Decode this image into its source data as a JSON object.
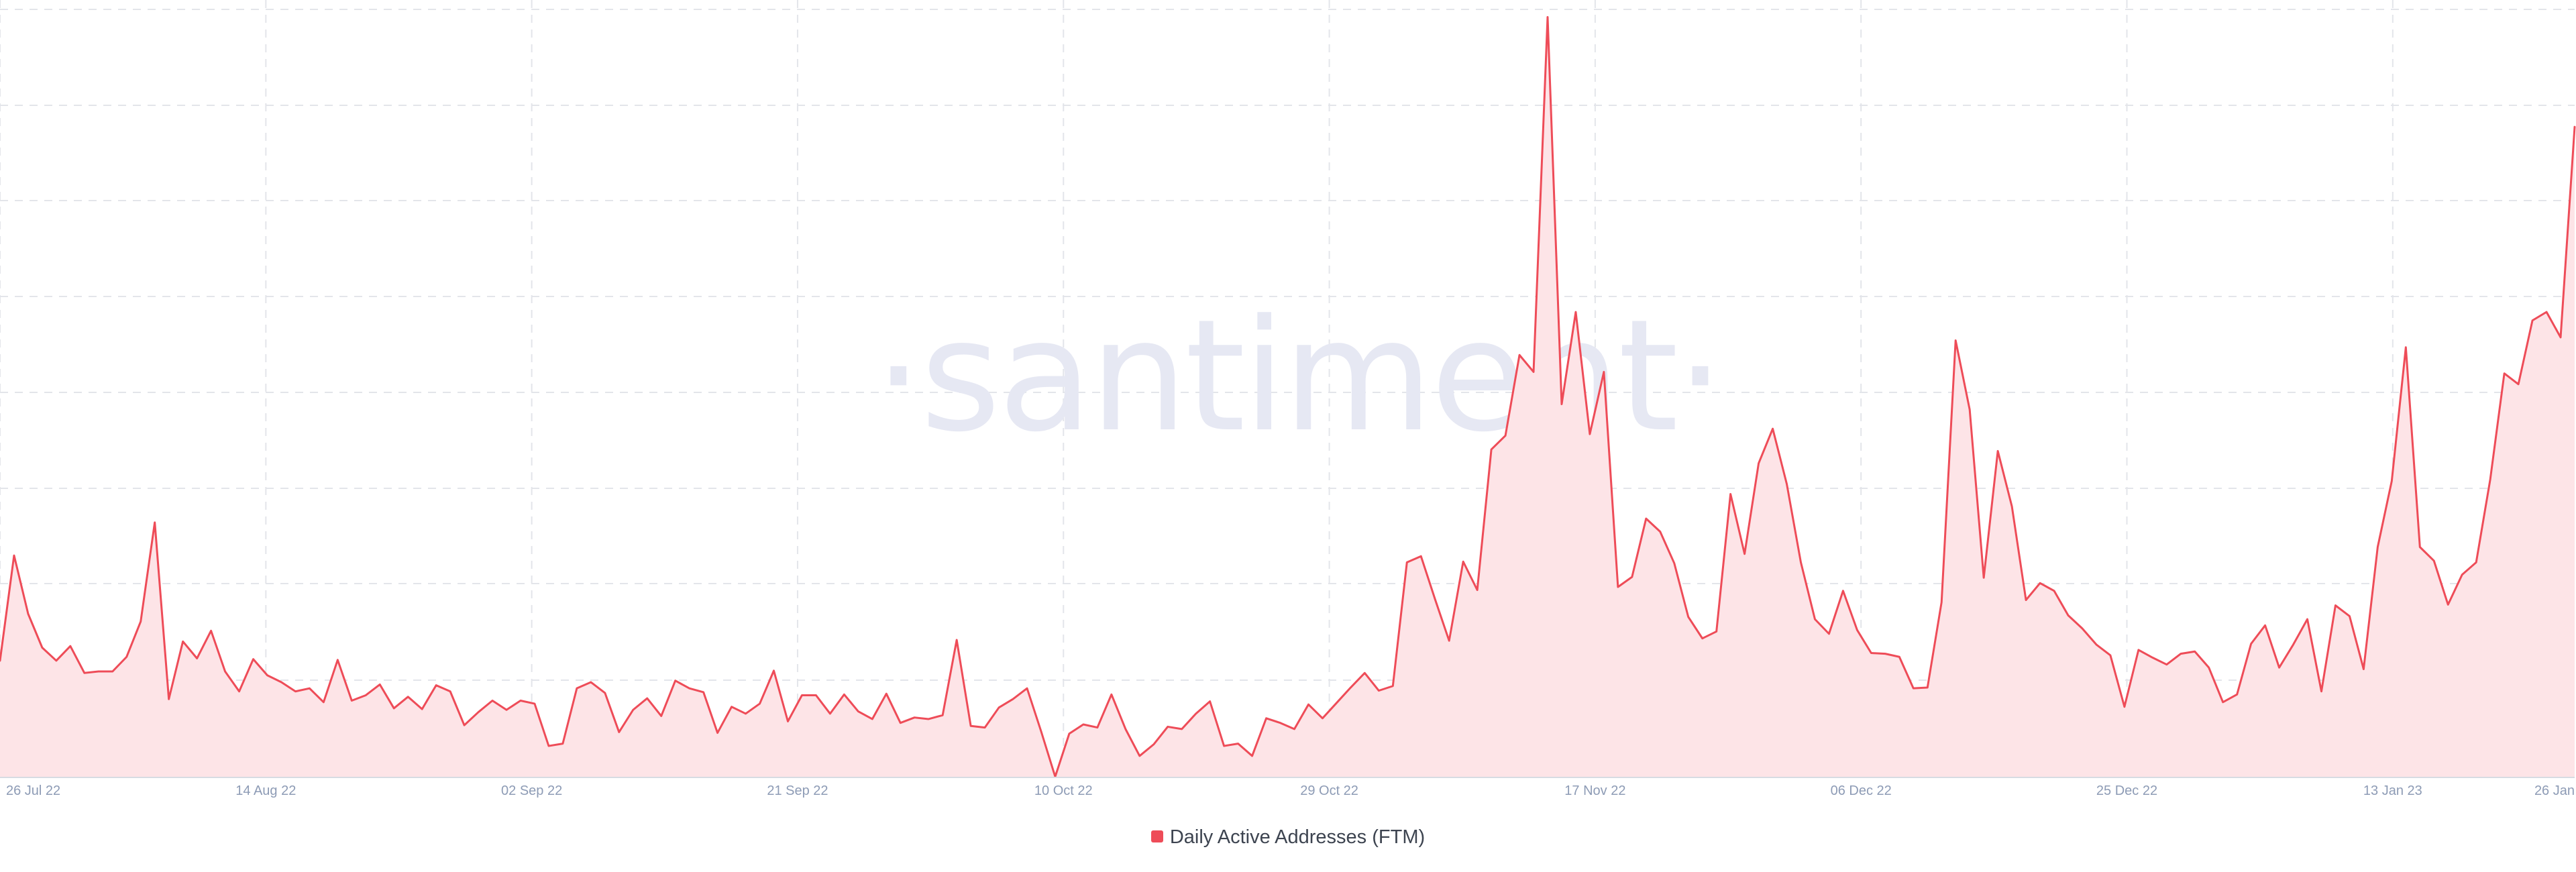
{
  "watermark": "·santiment·",
  "colors": {
    "line": "#ee4c58",
    "area": "#fde4e7",
    "grid": "#e3e5ea",
    "tick": "#8d9bb5",
    "watermark": "#e6e8f3"
  },
  "chart_data": {
    "type": "area",
    "title": "",
    "xlabel": "",
    "ylabel": "",
    "grid": true,
    "legend_position": "bottom-center",
    "x_range": [
      "2022-07-26",
      "2023-01-26"
    ],
    "y_range": [
      0,
      100
    ],
    "x_ticks": [
      {
        "date": "2022-07-26",
        "label": "26 Jul 22"
      },
      {
        "date": "2022-08-14",
        "label": "14 Aug 22"
      },
      {
        "date": "2022-09-02",
        "label": "02 Sep 22"
      },
      {
        "date": "2022-09-21",
        "label": "21 Sep 22"
      },
      {
        "date": "2022-10-10",
        "label": "10 Oct 22"
      },
      {
        "date": "2022-10-29",
        "label": "29 Oct 22"
      },
      {
        "date": "2022-11-17",
        "label": "17 Nov 22"
      },
      {
        "date": "2022-12-06",
        "label": "06 Dec 22"
      },
      {
        "date": "2022-12-25",
        "label": "25 Dec 22"
      },
      {
        "date": "2023-01-13",
        "label": "13 Jan 23"
      },
      {
        "date": "2023-01-26",
        "label": "26 Jan"
      }
    ],
    "series": [
      {
        "name": "Daily Active Addresses (FTM)",
        "color": "#ee4c58",
        "values": [
          15.2,
          28.9,
          21.3,
          16.9,
          15.2,
          17.1,
          13.6,
          13.8,
          13.8,
          15.7,
          20.3,
          33.2,
          10.2,
          17.7,
          15.5,
          19.1,
          13.8,
          11.2,
          15.4,
          13.3,
          12.4,
          11.2,
          11.6,
          9.8,
          15.3,
          10.0,
          10.7,
          12.1,
          9.0,
          10.5,
          8.9,
          12.0,
          11.2,
          6.8,
          8.5,
          10.0,
          8.8,
          10.0,
          9.6,
          4.1,
          4.4,
          11.6,
          12.4,
          11.0,
          5.9,
          8.8,
          10.3,
          8.0,
          12.6,
          11.6,
          11.1,
          5.8,
          9.2,
          8.3,
          9.6,
          13.9,
          7.3,
          10.7,
          10.7,
          8.3,
          10.8,
          8.6,
          7.6,
          10.9,
          7.1,
          7.8,
          7.6,
          8.1,
          17.9,
          6.7,
          6.5,
          9.1,
          10.2,
          11.6,
          6.0,
          0.1,
          5.7,
          6.9,
          6.5,
          10.8,
          6.3,
          2.8,
          4.3,
          6.6,
          6.3,
          8.3,
          9.9,
          4.1,
          4.4,
          2.8,
          7.7,
          7.1,
          6.3,
          9.5,
          7.7,
          9.7,
          11.7,
          13.6,
          11.3,
          11.9,
          28.0,
          28.8,
          23.2,
          17.8,
          28.1,
          24.4,
          42.7,
          44.5,
          55.0,
          52.8,
          99.0,
          48.6,
          60.6,
          44.7,
          52.8,
          24.8,
          26.1,
          33.7,
          32.0,
          27.9,
          20.9,
          18.1,
          19.0,
          36.9,
          29.1,
          40.9,
          45.4,
          38.2,
          28.0,
          20.6,
          18.7,
          24.3,
          19.2,
          16.2,
          16.1,
          15.7,
          11.6,
          11.7,
          22.8,
          56.9,
          47.9,
          26.0,
          42.5,
          35.3,
          23.1,
          25.3,
          24.3,
          21.1,
          19.4,
          17.3,
          15.9,
          9.2,
          16.6,
          15.6,
          14.7,
          16.1,
          16.4,
          14.3,
          9.8,
          10.8,
          17.4,
          19.8,
          14.3,
          17.3,
          20.6,
          11.2,
          22.4,
          21.0,
          14.1,
          30.0,
          38.6,
          56.0,
          30.0,
          28.2,
          22.5,
          26.4,
          28.0,
          38.8,
          52.6,
          51.2,
          59.5,
          60.6,
          57.3,
          84.7
        ]
      }
    ]
  }
}
